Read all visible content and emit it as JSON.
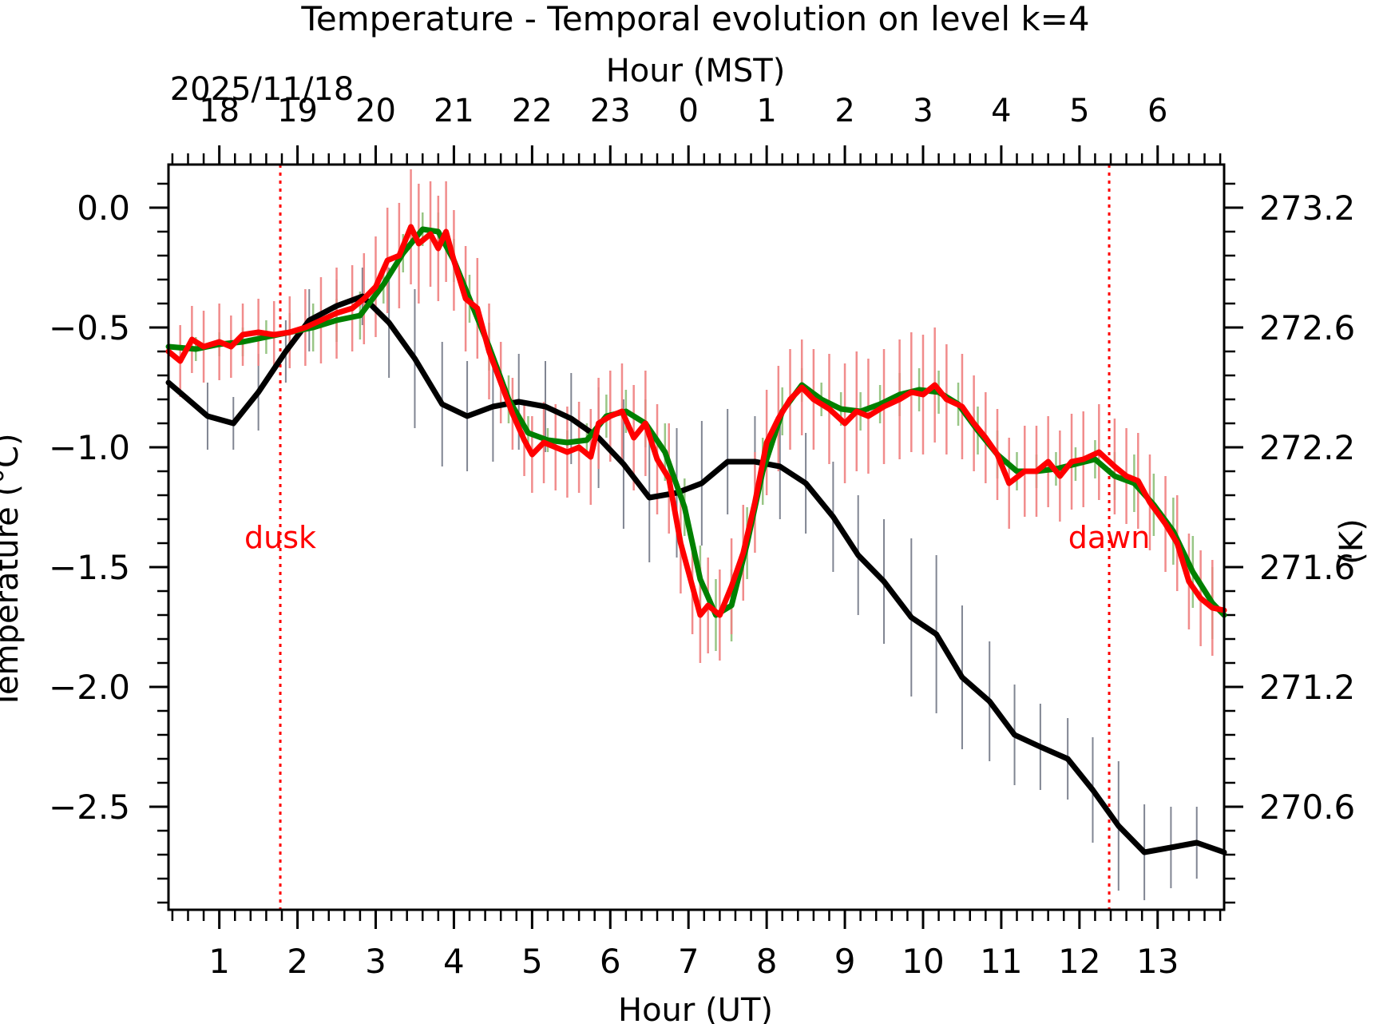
{
  "chart_data": {
    "type": "line",
    "title": "Temperature - Temporal evolution on level k=4",
    "xlabel": "Hour (UT)",
    "x2label": "Hour (MST)",
    "date_label": "2025/11/18",
    "ylabel": "Temperature (°C)",
    "y2label": "(K)",
    "xlim": [
      0.35,
      13.85
    ],
    "ylim": [
      -2.93,
      0.18
    ],
    "x_ticks": [
      1,
      2,
      3,
      4,
      5,
      6,
      7,
      8,
      9,
      10,
      11,
      12,
      13
    ],
    "x_tick_labels": [
      "1",
      "2",
      "3",
      "4",
      "5",
      "6",
      "7",
      "8",
      "9",
      "10",
      "11",
      "12",
      "13"
    ],
    "top_tick_labels": [
      "18",
      "19",
      "20",
      "21",
      "22",
      "23",
      "0",
      "1",
      "2",
      "3",
      "4",
      "5",
      "6"
    ],
    "y_ticks": [
      0.0,
      -0.5,
      -1.0,
      -1.5,
      -2.0,
      -2.5
    ],
    "y_tick_labels": [
      "0.0",
      "−0.5",
      "−1.0",
      "−1.5",
      "−2.0",
      "−2.5"
    ],
    "y2_tick_labels": [
      "273.2",
      "272.6",
      "272.2",
      "271.6",
      "271.2",
      "270.6"
    ],
    "annotations": [
      {
        "text": "dusk",
        "x": 1.78
      },
      {
        "text": "dawn",
        "x": 12.38
      }
    ],
    "series": [
      {
        "name": "black",
        "color": "#000000",
        "error_color": "#6b7080",
        "x": [
          0.35,
          0.85,
          1.18,
          1.5,
          1.85,
          2.15,
          2.5,
          2.83,
          3.17,
          3.5,
          3.85,
          4.17,
          4.5,
          4.83,
          5.17,
          5.5,
          5.85,
          6.17,
          6.5,
          6.85,
          7.17,
          7.5,
          7.85,
          8.17,
          8.5,
          8.85,
          9.17,
          9.5,
          9.85,
          10.17,
          10.5,
          10.85,
          11.17,
          11.5,
          11.85,
          12.17,
          12.5,
          12.83,
          13.17,
          13.5,
          13.85
        ],
        "y": [
          -0.73,
          -0.87,
          -0.9,
          -0.77,
          -0.6,
          -0.47,
          -0.41,
          -0.37,
          -0.48,
          -0.63,
          -0.82,
          -0.87,
          -0.83,
          -0.81,
          -0.83,
          -0.88,
          -0.96,
          -1.07,
          -1.21,
          -1.19,
          -1.15,
          -1.06,
          -1.06,
          -1.08,
          -1.15,
          -1.29,
          -1.45,
          -1.56,
          -1.71,
          -1.78,
          -1.96,
          -2.06,
          -2.2,
          -2.25,
          -2.3,
          -2.43,
          -2.58,
          -2.69,
          -2.67,
          -2.65,
          -2.69
        ],
        "err": [
          0.22,
          0.14,
          0.11,
          0.16,
          0.13,
          0.13,
          0.11,
          0.12,
          0.23,
          0.29,
          0.26,
          0.23,
          0.23,
          0.2,
          0.19,
          0.19,
          0.21,
          0.27,
          0.27,
          0.27,
          0.26,
          0.22,
          0.19,
          0.22,
          0.21,
          0.23,
          0.25,
          0.26,
          0.33,
          0.33,
          0.3,
          0.25,
          0.21,
          0.18,
          0.17,
          0.22,
          0.27,
          0.2,
          0.17,
          0.15,
          0.14
        ]
      },
      {
        "name": "green",
        "color": "#008000",
        "error_color": "#8fc07a",
        "x": [
          0.35,
          0.7,
          1.0,
          1.3,
          1.6,
          1.9,
          2.2,
          2.5,
          2.8,
          3.1,
          3.35,
          3.6,
          3.8,
          4.0,
          4.2,
          4.45,
          4.7,
          4.95,
          5.2,
          5.45,
          5.7,
          5.95,
          6.2,
          6.45,
          6.7,
          6.95,
          7.15,
          7.35,
          7.55,
          7.75,
          7.95,
          8.2,
          8.45,
          8.7,
          8.95,
          9.2,
          9.45,
          9.7,
          9.95,
          10.2,
          10.45,
          10.7,
          10.95,
          11.2,
          11.45,
          11.7,
          11.95,
          12.2,
          12.45,
          12.7,
          12.95,
          13.2,
          13.45,
          13.7,
          13.85
        ],
        "y": [
          -0.58,
          -0.59,
          -0.57,
          -0.56,
          -0.54,
          -0.52,
          -0.5,
          -0.47,
          -0.45,
          -0.32,
          -0.19,
          -0.09,
          -0.1,
          -0.22,
          -0.38,
          -0.58,
          -0.8,
          -0.94,
          -0.97,
          -0.98,
          -0.97,
          -0.87,
          -0.85,
          -0.9,
          -1.02,
          -1.25,
          -1.55,
          -1.7,
          -1.66,
          -1.4,
          -1.1,
          -0.85,
          -0.74,
          -0.8,
          -0.84,
          -0.85,
          -0.82,
          -0.78,
          -0.76,
          -0.77,
          -0.82,
          -0.93,
          -1.03,
          -1.1,
          -1.1,
          -1.09,
          -1.07,
          -1.05,
          -1.12,
          -1.15,
          -1.24,
          -1.35,
          -1.52,
          -1.65,
          -1.7
        ],
        "err": [
          0.04,
          0.05,
          0.05,
          0.06,
          0.07,
          0.08,
          0.1,
          0.09,
          0.1,
          0.08,
          0.08,
          0.07,
          0.08,
          0.09,
          0.1,
          0.1,
          0.1,
          0.07,
          0.05,
          0.05,
          0.07,
          0.09,
          0.09,
          0.1,
          0.12,
          0.12,
          0.14,
          0.15,
          0.15,
          0.15,
          0.14,
          0.1,
          0.07,
          0.07,
          0.07,
          0.08,
          0.08,
          0.09,
          0.09,
          0.09,
          0.09,
          0.1,
          0.1,
          0.08,
          0.07,
          0.07,
          0.07,
          0.08,
          0.1,
          0.12,
          0.13,
          0.14,
          0.15,
          0.15,
          0.15
        ]
      },
      {
        "name": "red",
        "color": "#ff0000",
        "error_color": "#f08080",
        "x": [
          0.35,
          0.5,
          0.65,
          0.8,
          1.0,
          1.15,
          1.3,
          1.5,
          1.7,
          1.9,
          2.1,
          2.3,
          2.5,
          2.7,
          2.85,
          3.0,
          3.15,
          3.3,
          3.45,
          3.55,
          3.7,
          3.8,
          3.9,
          4.0,
          4.15,
          4.3,
          4.45,
          4.6,
          4.75,
          4.9,
          5.0,
          5.15,
          5.3,
          5.45,
          5.6,
          5.75,
          5.85,
          6.0,
          6.15,
          6.3,
          6.45,
          6.6,
          6.75,
          6.9,
          7.05,
          7.15,
          7.25,
          7.4,
          7.55,
          7.7,
          7.85,
          8.0,
          8.15,
          8.3,
          8.45,
          8.6,
          8.8,
          9.0,
          9.15,
          9.3,
          9.5,
          9.7,
          9.85,
          10.0,
          10.15,
          10.3,
          10.5,
          10.65,
          10.8,
          10.95,
          11.1,
          11.3,
          11.45,
          11.6,
          11.75,
          11.9,
          12.05,
          12.25,
          12.45,
          12.6,
          12.75,
          12.9,
          13.1,
          13.25,
          13.4,
          13.55,
          13.7,
          13.85
        ],
        "y": [
          -0.6,
          -0.64,
          -0.55,
          -0.58,
          -0.56,
          -0.58,
          -0.53,
          -0.52,
          -0.53,
          -0.52,
          -0.5,
          -0.47,
          -0.44,
          -0.42,
          -0.38,
          -0.33,
          -0.22,
          -0.2,
          -0.08,
          -0.15,
          -0.11,
          -0.17,
          -0.1,
          -0.22,
          -0.38,
          -0.42,
          -0.6,
          -0.73,
          -0.86,
          -0.97,
          -1.03,
          -0.98,
          -1.0,
          -1.02,
          -1.0,
          -1.04,
          -0.9,
          -0.87,
          -0.85,
          -0.96,
          -0.9,
          -1.05,
          -1.13,
          -1.4,
          -1.58,
          -1.7,
          -1.66,
          -1.7,
          -1.58,
          -1.44,
          -1.23,
          -0.98,
          -0.88,
          -0.8,
          -0.75,
          -0.8,
          -0.84,
          -0.9,
          -0.85,
          -0.87,
          -0.83,
          -0.8,
          -0.77,
          -0.78,
          -0.74,
          -0.8,
          -0.83,
          -0.9,
          -0.96,
          -1.03,
          -1.15,
          -1.1,
          -1.1,
          -1.06,
          -1.12,
          -1.06,
          -1.05,
          -1.02,
          -1.08,
          -1.12,
          -1.14,
          -1.23,
          -1.32,
          -1.4,
          -1.56,
          -1.63,
          -1.67,
          -1.68
        ],
        "err": [
          0.15,
          0.15,
          0.14,
          0.15,
          0.16,
          0.13,
          0.13,
          0.14,
          0.14,
          0.15,
          0.16,
          0.18,
          0.19,
          0.18,
          0.19,
          0.21,
          0.22,
          0.22,
          0.24,
          0.25,
          0.22,
          0.22,
          0.21,
          0.21,
          0.22,
          0.21,
          0.2,
          0.17,
          0.15,
          0.15,
          0.16,
          0.17,
          0.18,
          0.19,
          0.19,
          0.2,
          0.19,
          0.19,
          0.2,
          0.22,
          0.22,
          0.23,
          0.23,
          0.21,
          0.2,
          0.2,
          0.2,
          0.19,
          0.2,
          0.2,
          0.21,
          0.22,
          0.22,
          0.21,
          0.2,
          0.21,
          0.23,
          0.25,
          0.25,
          0.24,
          0.24,
          0.25,
          0.25,
          0.25,
          0.24,
          0.23,
          0.22,
          0.2,
          0.19,
          0.19,
          0.19,
          0.19,
          0.19,
          0.19,
          0.19,
          0.2,
          0.2,
          0.2,
          0.2,
          0.2,
          0.2,
          0.2,
          0.2,
          0.2,
          0.2,
          0.2,
          0.2,
          0.2
        ]
      }
    ]
  }
}
